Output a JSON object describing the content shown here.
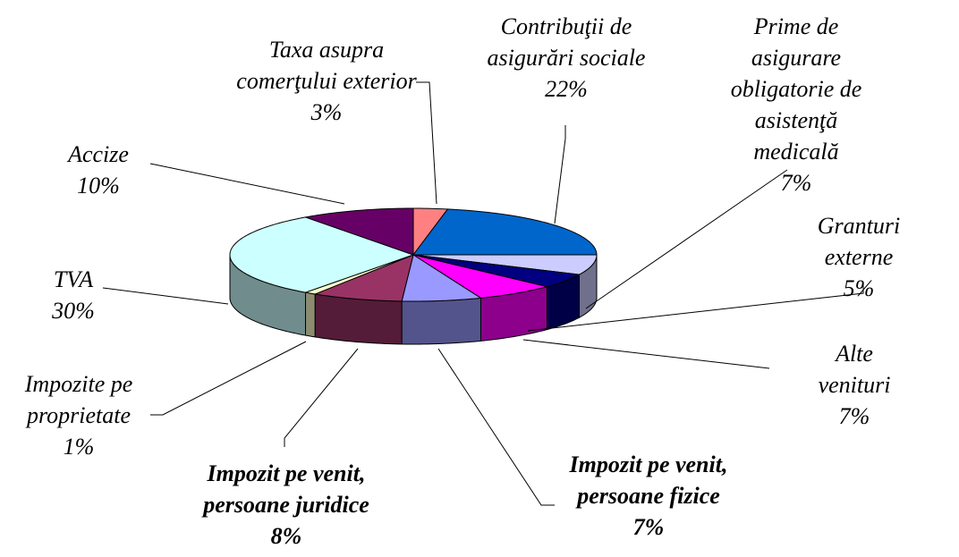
{
  "chart_data": {
    "type": "pie",
    "categories": [
      "Taxa asupra\ncomerţului exterior",
      "Contribuţii de\nasigurări sociale",
      "Prime de asigurare\nobligatorie de\nasistenţă medicală",
      "Granturi externe",
      "Alte venituri",
      "Impozit pe venit,\npersoane fizice",
      "Impozit pe venit,\npersoane juridice",
      "Impozite pe\nproprietate",
      "TVA",
      "Accize"
    ],
    "values": [
      3,
      22,
      7,
      5,
      7,
      7,
      8,
      1,
      30,
      10
    ],
    "value_labels": [
      "3%",
      "22%",
      "7%",
      "5%",
      "7%",
      "7%",
      "8%",
      "1%",
      "30%",
      "10%"
    ],
    "colors": [
      "#ff8080",
      "#0066cc",
      "#ccccff",
      "#000080",
      "#ff00ff",
      "#9999ff",
      "#993366",
      "#ffffcc",
      "#ccffff",
      "#660066"
    ]
  }
}
